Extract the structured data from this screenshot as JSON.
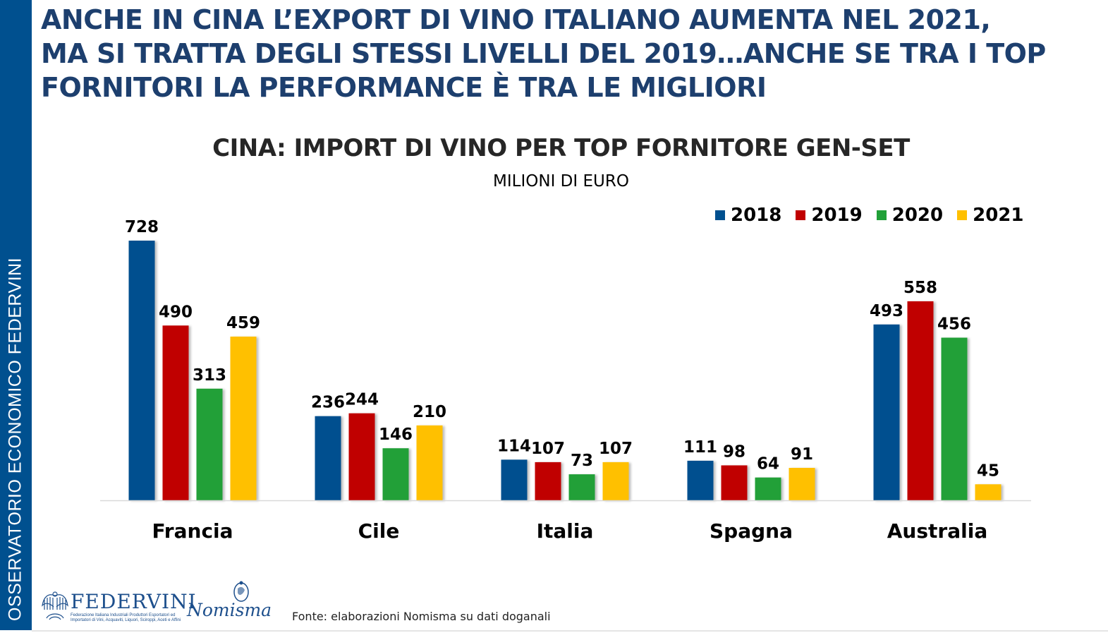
{
  "sidebar": {
    "label": "OSSERVATORIO ECONOMICO  FEDERVINI"
  },
  "headline": {
    "lines": [
      "ANCHE IN CINA L’EXPORT DI VINO ITALIANO AUMENTA NEL 2021,",
      "MA SI TRATTA DEGLI STESSI LIVELLI DEL 2019…ANCHE SE TRA I TOP",
      "FORNITORI LA PERFORMANCE È TRA LE MIGLIORI"
    ]
  },
  "footer": {
    "federvini_name": "FEDERVINI",
    "federvini_subtitle": "Federazione Italiana Industriali Produttori Esportatori ed Importatori di Vini, Acquaviti, Liquori, Sciroppi, Aceti e Affini",
    "nomisma_name": "Nomisma",
    "source": "Fonte: elaborazioni Nomisma su dati doganali"
  },
  "chart_data": {
    "type": "bar",
    "title": "CINA: IMPORT DI VINO PER TOP FORNITORE GEN-SET",
    "subtitle": "MILIONI DI EURO",
    "xlabel": "",
    "ylabel": "",
    "ylim": [
      0,
      728
    ],
    "grid": false,
    "legend_position": "top-right",
    "categories": [
      "Francia",
      "Cile",
      "Italia",
      "Spagna",
      "Australia"
    ],
    "series": [
      {
        "name": "2018",
        "color": "#00508f",
        "values": [
          728,
          236,
          114,
          111,
          493
        ]
      },
      {
        "name": "2019",
        "color": "#c00000",
        "values": [
          490,
          244,
          107,
          98,
          558
        ]
      },
      {
        "name": "2020",
        "color": "#21a038",
        "values": [
          313,
          146,
          73,
          64,
          456
        ]
      },
      {
        "name": "2021",
        "color": "#ffc000",
        "values": [
          459,
          210,
          107,
          91,
          45
        ]
      }
    ]
  }
}
